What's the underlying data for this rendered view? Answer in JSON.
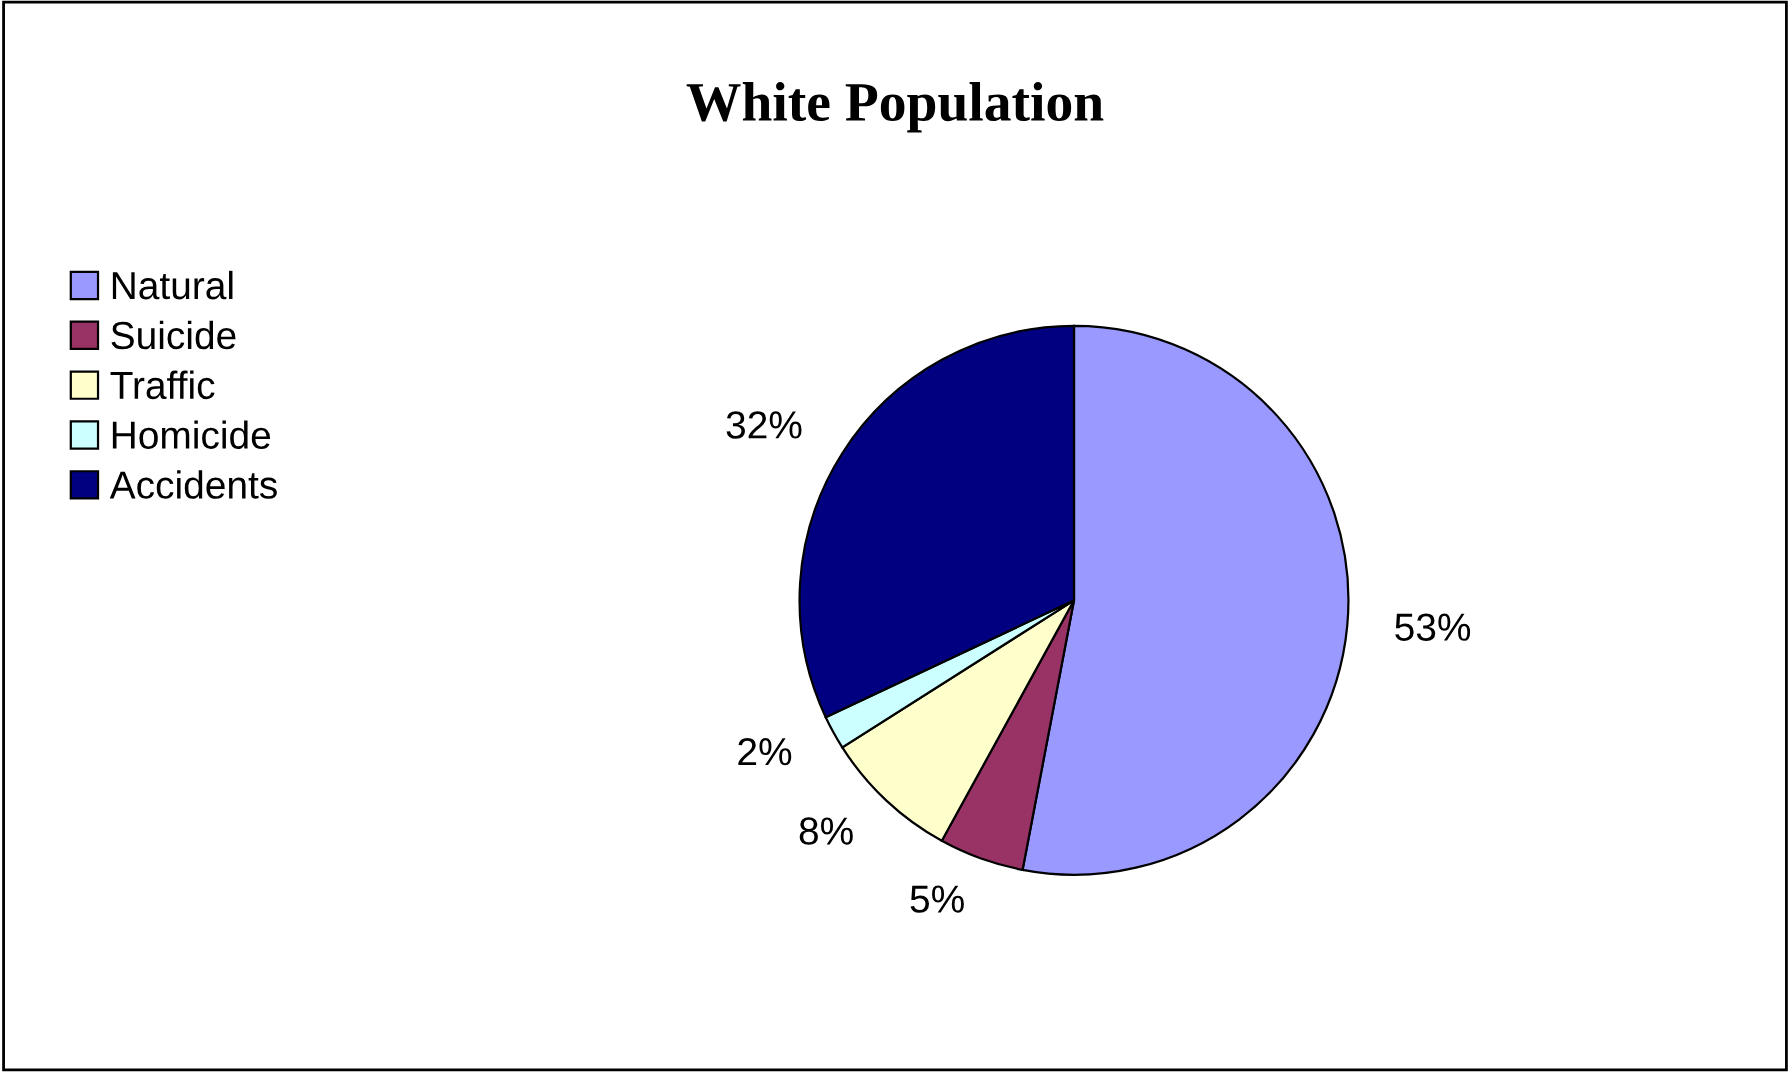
{
  "chart_data": {
    "type": "pie",
    "title": "White Population",
    "categories": [
      "Natural",
      "Suicide",
      "Traffic",
      "Homicide",
      "Accidents"
    ],
    "values": [
      53,
      5,
      8,
      2,
      32
    ],
    "colors": [
      "#9999ff",
      "#993366",
      "#ffffcc",
      "#ccffff",
      "#000080"
    ],
    "value_labels": [
      "53%",
      "5%",
      "8%",
      "2%",
      "32%"
    ],
    "legend": "left"
  }
}
